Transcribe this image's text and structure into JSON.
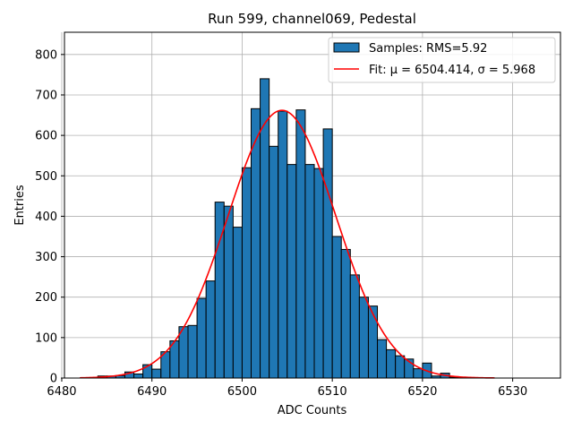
{
  "chart_data": {
    "type": "bar",
    "title": "Run 599, channel069, Pedestal",
    "xlabel": "ADC Counts",
    "ylabel": "Entries",
    "xlim": [
      6480.3,
      6535.3
    ],
    "ylim": [
      0,
      855
    ],
    "xticks": [
      6480,
      6490,
      6500,
      6510,
      6520,
      6530
    ],
    "yticks": [
      0,
      100,
      200,
      300,
      400,
      500,
      600,
      700,
      800
    ],
    "grid": true,
    "legend_position": "top-right",
    "histogram": {
      "name": "Samples: RMS=5.92",
      "color": "#1f77b4",
      "edgecolor": "#000000",
      "bin_width": 1,
      "bin_left_edges": [
        6484,
        6485,
        6486,
        6487,
        6488,
        6489,
        6490,
        6491,
        6492,
        6493,
        6494,
        6495,
        6496,
        6497,
        6498,
        6499,
        6500,
        6501,
        6502,
        6503,
        6504,
        6505,
        6506,
        6507,
        6508,
        6509,
        6510,
        6511,
        6512,
        6513,
        6514,
        6515,
        6516,
        6517,
        6518,
        6519,
        6520,
        6521,
        6522,
        6523
      ],
      "values": [
        5,
        5,
        6,
        15,
        10,
        33,
        22,
        65,
        92,
        127,
        130,
        197,
        240,
        435,
        425,
        373,
        520,
        666,
        740,
        573,
        660,
        528,
        663,
        528,
        518,
        616,
        350,
        318,
        255,
        200,
        178,
        95,
        70,
        55,
        47,
        23,
        37,
        5,
        12,
        2
      ]
    },
    "fit": {
      "name": "Fit: μ = 6504.414, σ = 5.968",
      "color": "#ff0000",
      "mu": 6504.414,
      "sigma": 5.968,
      "amplitude": 662,
      "x_range": [
        6482,
        6528
      ]
    }
  }
}
